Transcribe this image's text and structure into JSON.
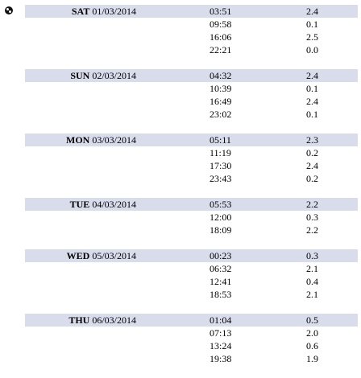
{
  "days": [
    {
      "weekday": "SAT",
      "date": "01/03/2014",
      "tides": [
        {
          "time": "03:51",
          "height": "2.4"
        },
        {
          "time": "09:58",
          "height": "0.1"
        },
        {
          "time": "16:06",
          "height": "2.5"
        },
        {
          "time": "22:21",
          "height": "0.0"
        }
      ]
    },
    {
      "weekday": "SUN",
      "date": "02/03/2014",
      "tides": [
        {
          "time": "04:32",
          "height": "2.4"
        },
        {
          "time": "10:39",
          "height": "0.1"
        },
        {
          "time": "16:49",
          "height": "2.4"
        },
        {
          "time": "23:02",
          "height": "0.1"
        }
      ]
    },
    {
      "weekday": "MON",
      "date": "03/03/2014",
      "tides": [
        {
          "time": "05:11",
          "height": "2.3"
        },
        {
          "time": "11:19",
          "height": "0.2"
        },
        {
          "time": "17:30",
          "height": "2.4"
        },
        {
          "time": "23:43",
          "height": "0.2"
        }
      ]
    },
    {
      "weekday": "TUE",
      "date": "04/03/2014",
      "tides": [
        {
          "time": "05:53",
          "height": "2.2"
        },
        {
          "time": "12:00",
          "height": "0.3"
        },
        {
          "time": "18:09",
          "height": "2.2"
        }
      ]
    },
    {
      "weekday": "WED",
      "date": "05/03/2014",
      "tides": [
        {
          "time": "00:23",
          "height": "0.3"
        },
        {
          "time": "06:32",
          "height": "2.1"
        },
        {
          "time": "12:41",
          "height": "0.4"
        },
        {
          "time": "18:53",
          "height": "2.1"
        }
      ]
    },
    {
      "weekday": "THU",
      "date": "06/03/2014",
      "tides": [
        {
          "time": "01:04",
          "height": "0.5"
        },
        {
          "time": "07:13",
          "height": "2.0"
        },
        {
          "time": "13:24",
          "height": "0.6"
        },
        {
          "time": "19:38",
          "height": "1.9"
        }
      ]
    }
  ]
}
